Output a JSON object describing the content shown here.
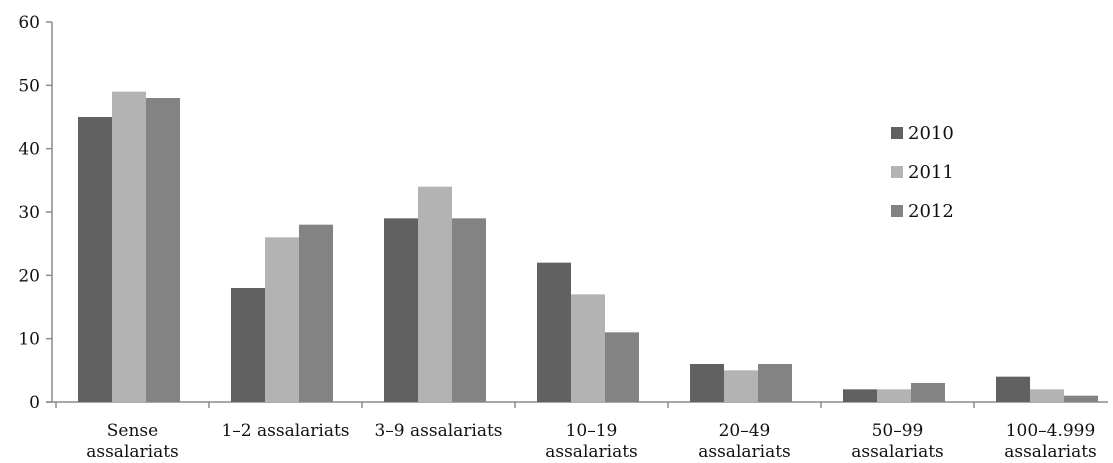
{
  "chart_data": {
    "type": "bar",
    "title": "",
    "xlabel": "",
    "ylabel": "",
    "ylim": [
      0,
      60
    ],
    "yticks": [
      "0",
      "10",
      "20",
      "30",
      "40",
      "50",
      "60"
    ],
    "categories": [
      [
        "Sense",
        "assalariats"
      ],
      [
        "1–2 assalariats"
      ],
      [
        "3–9 assalariats"
      ],
      [
        "10–19",
        "assalariats"
      ],
      [
        "20–49",
        "assalariats"
      ],
      [
        "50–99",
        "assalariats"
      ],
      [
        "100–4.999",
        "assalariats"
      ]
    ],
    "series": [
      {
        "name": "2010",
        "color": "#616161",
        "values": [
          45,
          18,
          29,
          22,
          6,
          2,
          4
        ]
      },
      {
        "name": "2011",
        "color": "#b3b3b3",
        "values": [
          49,
          26,
          34,
          17,
          5,
          2,
          2
        ]
      },
      {
        "name": "2012",
        "color": "#838383",
        "values": [
          48,
          28,
          29,
          11,
          6,
          3,
          1
        ]
      }
    ],
    "grid": false,
    "legend": "right"
  }
}
